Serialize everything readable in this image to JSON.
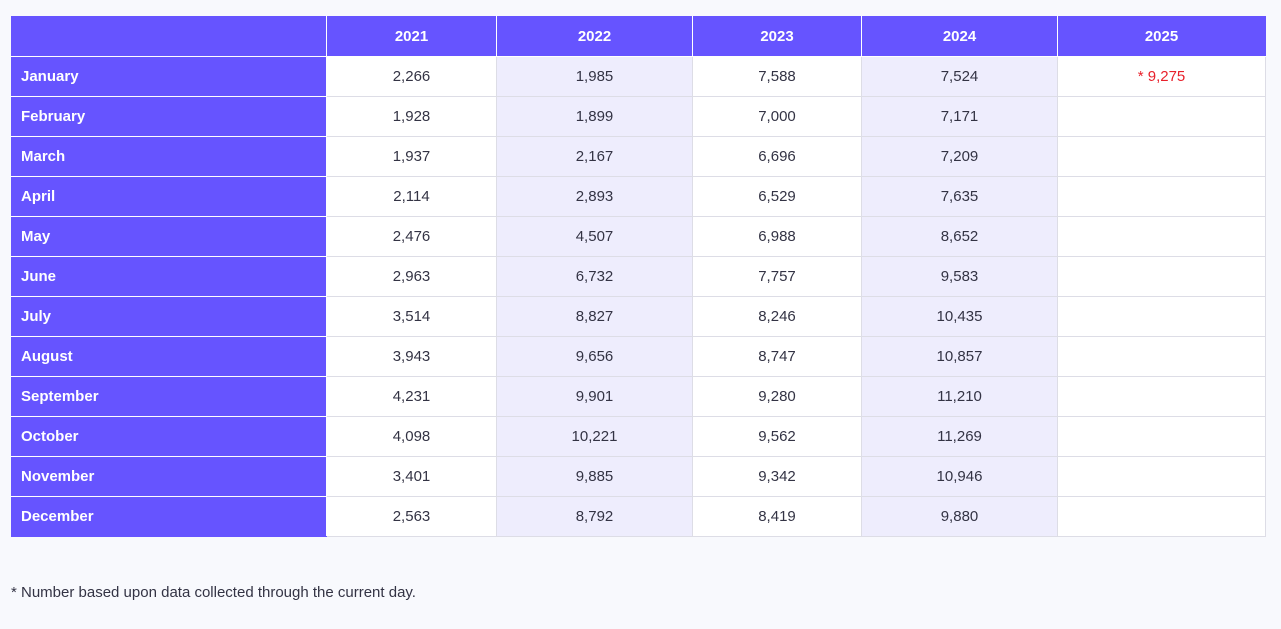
{
  "table": {
    "headers": [
      "",
      "2021",
      "2022",
      "2023",
      "2024",
      "2025"
    ],
    "rows": [
      {
        "month": "January",
        "values": [
          "2,266",
          "1,985",
          "7,588",
          "7,524",
          "* 9,275"
        ]
      },
      {
        "month": "February",
        "values": [
          "1,928",
          "1,899",
          "7,000",
          "7,171",
          ""
        ]
      },
      {
        "month": "March",
        "values": [
          "1,937",
          "2,167",
          "6,696",
          "7,209",
          ""
        ]
      },
      {
        "month": "April",
        "values": [
          "2,114",
          "2,893",
          "6,529",
          "7,635",
          ""
        ]
      },
      {
        "month": "May",
        "values": [
          "2,476",
          "4,507",
          "6,988",
          "8,652",
          ""
        ]
      },
      {
        "month": "June",
        "values": [
          "2,963",
          "6,732",
          "7,757",
          "9,583",
          ""
        ]
      },
      {
        "month": "July",
        "values": [
          "3,514",
          "8,827",
          "8,246",
          "10,435",
          ""
        ]
      },
      {
        "month": "August",
        "values": [
          "3,943",
          "9,656",
          "8,747",
          "10,857",
          ""
        ]
      },
      {
        "month": "September",
        "values": [
          "4,231",
          "9,901",
          "9,280",
          "11,210",
          ""
        ]
      },
      {
        "month": "October",
        "values": [
          "4,098",
          "10,221",
          "9,562",
          "11,269",
          ""
        ]
      },
      {
        "month": "November",
        "values": [
          "3,401",
          "9,885",
          "9,342",
          "10,946",
          ""
        ]
      },
      {
        "month": "December",
        "values": [
          "2,563",
          "8,792",
          "8,419",
          "9,880",
          ""
        ]
      }
    ]
  },
  "footnote": "* Number based upon data collected through the current day.",
  "colors": {
    "header_bg": "#6654ff",
    "alt_column_bg": "#eeedfd",
    "estimate_text": "#e8212b"
  }
}
